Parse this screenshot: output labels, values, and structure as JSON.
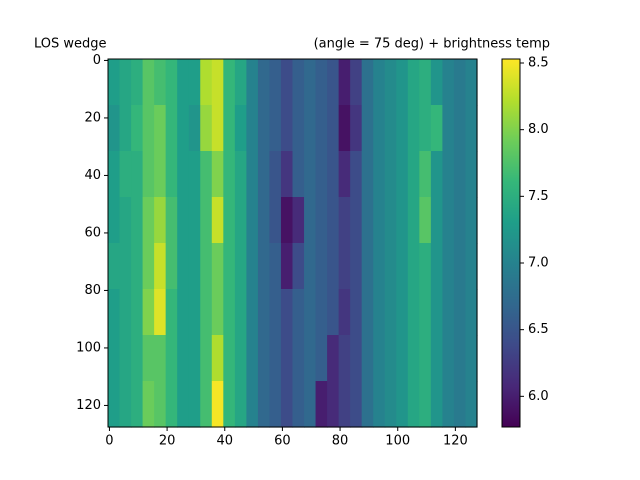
{
  "chart_data": {
    "type": "heatmap",
    "title_left": "LOS wedge",
    "title_right": "(angle = 75 deg) + brightness temp",
    "cmap": "viridis",
    "xlim": [
      -0.5,
      127.5
    ],
    "ylim": [
      127.5,
      -0.5
    ],
    "xticks": [
      0,
      20,
      40,
      60,
      80,
      100,
      120
    ],
    "yticks": [
      0,
      20,
      40,
      60,
      80,
      100,
      120
    ],
    "clim": [
      5.77,
      8.53
    ],
    "cticks": [
      {
        "value": 6,
        "label": "6.0"
      },
      {
        "value": 6.5,
        "label": "6.5"
      },
      {
        "value": 7,
        "label": "7.0"
      },
      {
        "value": 7.5,
        "label": "7.5"
      },
      {
        "value": 8,
        "label": "8.0"
      },
      {
        "value": 8.5,
        "label": "8.5"
      }
    ],
    "values": [
      [
        7.3,
        7.4,
        7.5,
        7.8,
        7.7,
        7.6,
        7.3,
        7.3,
        8.2,
        8.3,
        7.6,
        7.4,
        7.0,
        6.7,
        6.6,
        6.4,
        6.6,
        6.7,
        6.6,
        6.5,
        6.0,
        6.3,
        6.8,
        7.0,
        7.1,
        7.2,
        7.4,
        7.5,
        7.2,
        7.0,
        6.9,
        7.0
      ],
      [
        7.2,
        7.4,
        7.6,
        7.8,
        7.9,
        7.6,
        7.3,
        7.2,
        8.1,
        8.3,
        7.6,
        7.3,
        7.0,
        6.7,
        6.6,
        6.4,
        6.6,
        6.7,
        6.6,
        6.5,
        5.9,
        6.2,
        6.8,
        7.0,
        7.1,
        7.2,
        7.4,
        7.5,
        7.6,
        7.0,
        6.9,
        7.0
      ],
      [
        7.3,
        7.5,
        7.5,
        7.8,
        7.9,
        7.6,
        7.3,
        7.3,
        7.7,
        8.0,
        7.6,
        7.4,
        7.0,
        6.7,
        6.5,
        6.2,
        6.6,
        6.7,
        6.6,
        6.5,
        6.1,
        6.4,
        6.8,
        7.0,
        7.1,
        7.2,
        7.4,
        7.7,
        7.2,
        7.0,
        6.9,
        7.0
      ],
      [
        7.3,
        7.4,
        7.5,
        7.9,
        8.1,
        7.7,
        7.3,
        7.3,
        7.7,
        8.3,
        7.6,
        7.4,
        7.0,
        6.7,
        6.5,
        5.9,
        6.1,
        6.7,
        6.6,
        6.5,
        6.3,
        6.4,
        6.8,
        7.0,
        7.1,
        7.2,
        7.4,
        7.8,
        7.2,
        7.0,
        6.9,
        7.0
      ],
      [
        7.4,
        7.4,
        7.5,
        7.9,
        8.3,
        7.7,
        7.3,
        7.3,
        7.7,
        7.9,
        7.6,
        7.4,
        7.0,
        6.7,
        6.6,
        6.0,
        6.4,
        6.7,
        6.6,
        6.5,
        6.3,
        6.4,
        6.8,
        7.0,
        7.1,
        7.2,
        7.4,
        7.5,
        7.2,
        7.0,
        6.9,
        7.0
      ],
      [
        7.3,
        7.4,
        7.5,
        8.0,
        8.4,
        7.6,
        7.3,
        7.3,
        7.7,
        7.9,
        7.6,
        7.4,
        7.0,
        6.7,
        6.6,
        6.4,
        6.6,
        6.7,
        6.6,
        6.5,
        6.2,
        6.4,
        6.8,
        7.0,
        7.1,
        7.2,
        7.4,
        7.5,
        7.2,
        7.0,
        6.9,
        7.0
      ],
      [
        7.3,
        7.4,
        7.5,
        7.8,
        7.8,
        7.6,
        7.3,
        7.3,
        7.7,
        8.2,
        7.6,
        7.4,
        7.0,
        6.7,
        6.6,
        6.4,
        6.6,
        6.7,
        6.6,
        6.1,
        6.3,
        6.4,
        6.8,
        7.0,
        7.1,
        7.2,
        7.4,
        7.5,
        7.2,
        7.0,
        6.9,
        7.0
      ],
      [
        7.3,
        7.4,
        7.5,
        7.9,
        7.8,
        7.6,
        7.3,
        7.3,
        7.7,
        8.5,
        7.6,
        7.4,
        7.0,
        6.7,
        6.6,
        6.4,
        6.6,
        6.7,
        6.0,
        6.1,
        6.3,
        6.4,
        6.8,
        7.0,
        7.1,
        7.2,
        7.4,
        7.5,
        7.2,
        7.0,
        6.9,
        7.0
      ]
    ]
  }
}
